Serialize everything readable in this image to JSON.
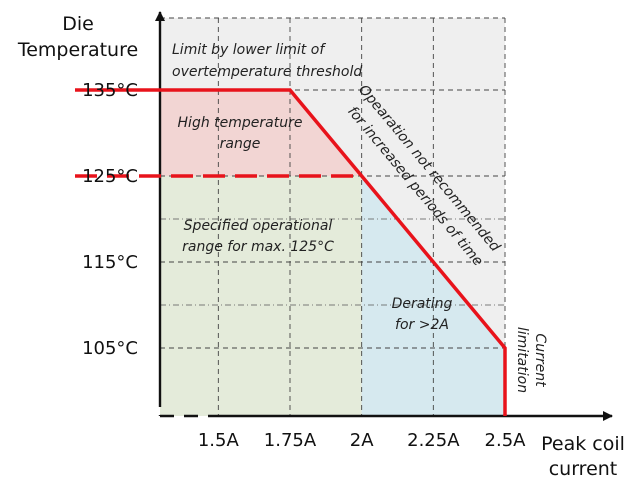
{
  "chart_data": {
    "type": "area",
    "title": "",
    "xlabel": [
      "Peak coil",
      "current"
    ],
    "ylabel": [
      "Die",
      "Temperature"
    ],
    "x_ticks": [
      {
        "value": 1.5,
        "label": "1.5A"
      },
      {
        "value": 1.75,
        "label": "1.75A"
      },
      {
        "value": 2.0,
        "label": "2A"
      },
      {
        "value": 2.25,
        "label": "2.25A"
      },
      {
        "value": 2.5,
        "label": "2.5A"
      }
    ],
    "y_ticks": [
      {
        "value": 105,
        "label": "105°C"
      },
      {
        "value": 115,
        "label": "115°C"
      },
      {
        "value": 125,
        "label": "125°C"
      },
      {
        "value": 135,
        "label": "135°C"
      }
    ],
    "xlim": [
      1.0,
      2.5
    ],
    "ylim": [
      95,
      135
    ],
    "grid": true,
    "limit_curve": {
      "color": "#e8131b",
      "points": [
        {
          "x": 1.0,
          "y": 135
        },
        {
          "x": 1.75,
          "y": 135
        },
        {
          "x": 2.5,
          "y": 105
        },
        {
          "x": 2.5,
          "y": 95
        }
      ]
    },
    "threshold_line": {
      "y": 125,
      "x_from": 1.0,
      "x_to": 2.0,
      "style": "dashed",
      "color": "#e8131b"
    },
    "regions": [
      {
        "name": "high-temperature-range",
        "color": "#f2d5d3",
        "label": [
          "High temperature",
          "range"
        ]
      },
      {
        "name": "specified-operational-range",
        "color": "#e4ebda",
        "label": [
          "Specified operational",
          "range for max. 125°C"
        ]
      },
      {
        "name": "derating-region",
        "color": "#d6e9ef",
        "label": [
          "Derating",
          "for >2A"
        ]
      },
      {
        "name": "not-recommended-region",
        "color": "#efefef",
        "label": [
          "Opearation not recommended",
          "for increased periods of time"
        ]
      }
    ],
    "annotations": {
      "top_limit": [
        "Limit by lower limit of",
        "overtemperature threshold"
      ],
      "current_limit": [
        "Current",
        "limitation"
      ]
    }
  }
}
